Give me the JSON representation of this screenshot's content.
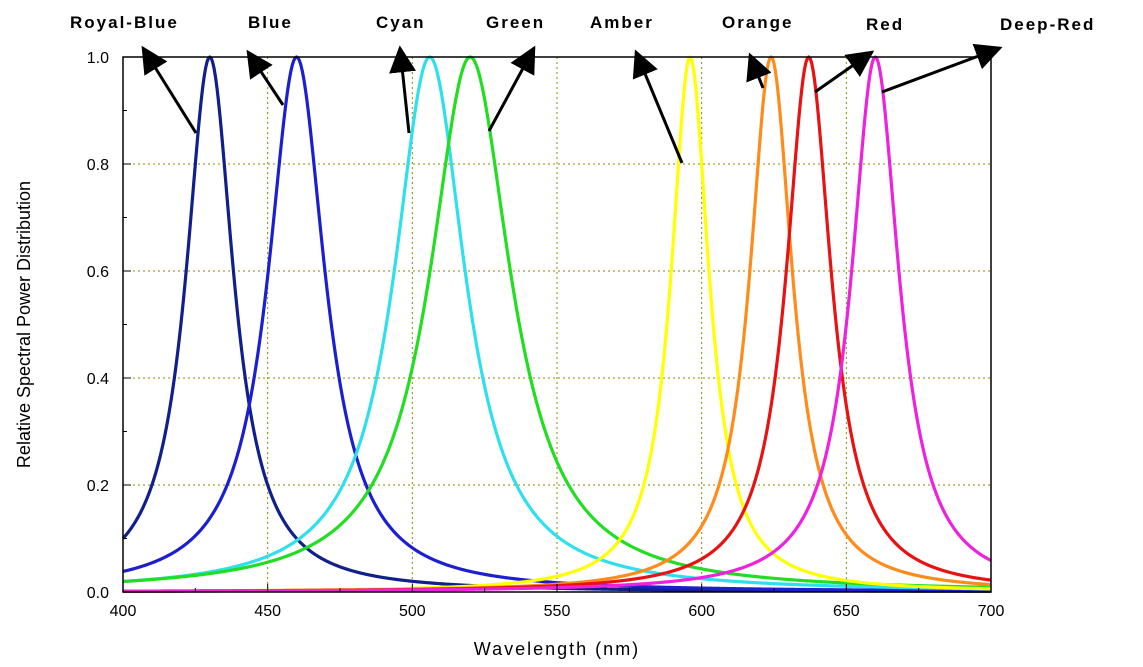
{
  "chart_data": {
    "type": "line",
    "xlabel": "Wavelength (nm)",
    "ylabel": "Relative Spectral Power Distribution",
    "xlim": [
      400,
      700
    ],
    "ylim": [
      0,
      1.0
    ],
    "x_ticks": [
      "400",
      "450",
      "500",
      "550",
      "600",
      "650",
      "700"
    ],
    "y_ticks": [
      "0.0",
      "0.2",
      "0.4",
      "0.6",
      "0.8",
      "1.0"
    ],
    "grid": true,
    "grid_style": "dotted",
    "grid_color": "#8B8B00",
    "series": [
      {
        "name": "Royal-Blue",
        "color": "#101f8a",
        "peak_nm": 430,
        "fwhm_nm": 20,
        "peak_value": 1.0
      },
      {
        "name": "Blue",
        "color": "#1c1fd0",
        "peak_nm": 460,
        "fwhm_nm": 24,
        "peak_value": 1.0
      },
      {
        "name": "Cyan",
        "color": "#2fe0ec",
        "peak_nm": 506,
        "fwhm_nm": 30,
        "peak_value": 1.0
      },
      {
        "name": "Green",
        "color": "#22dd22",
        "peak_nm": 520,
        "fwhm_nm": 34,
        "peak_value": 1.0
      },
      {
        "name": "Amber",
        "color": "#ffff00",
        "peak_nm": 596,
        "fwhm_nm": 16,
        "peak_value": 1.0
      },
      {
        "name": "Orange",
        "color": "#ff8c1a",
        "peak_nm": 624,
        "fwhm_nm": 18,
        "peak_value": 1.0
      },
      {
        "name": "Red",
        "color": "#e81212",
        "peak_nm": 637,
        "fwhm_nm": 19,
        "peak_value": 1.0
      },
      {
        "name": "Deep-Red",
        "color": "#ee22dd",
        "peak_nm": 660,
        "fwhm_nm": 20,
        "peak_value": 1.0
      }
    ]
  }
}
